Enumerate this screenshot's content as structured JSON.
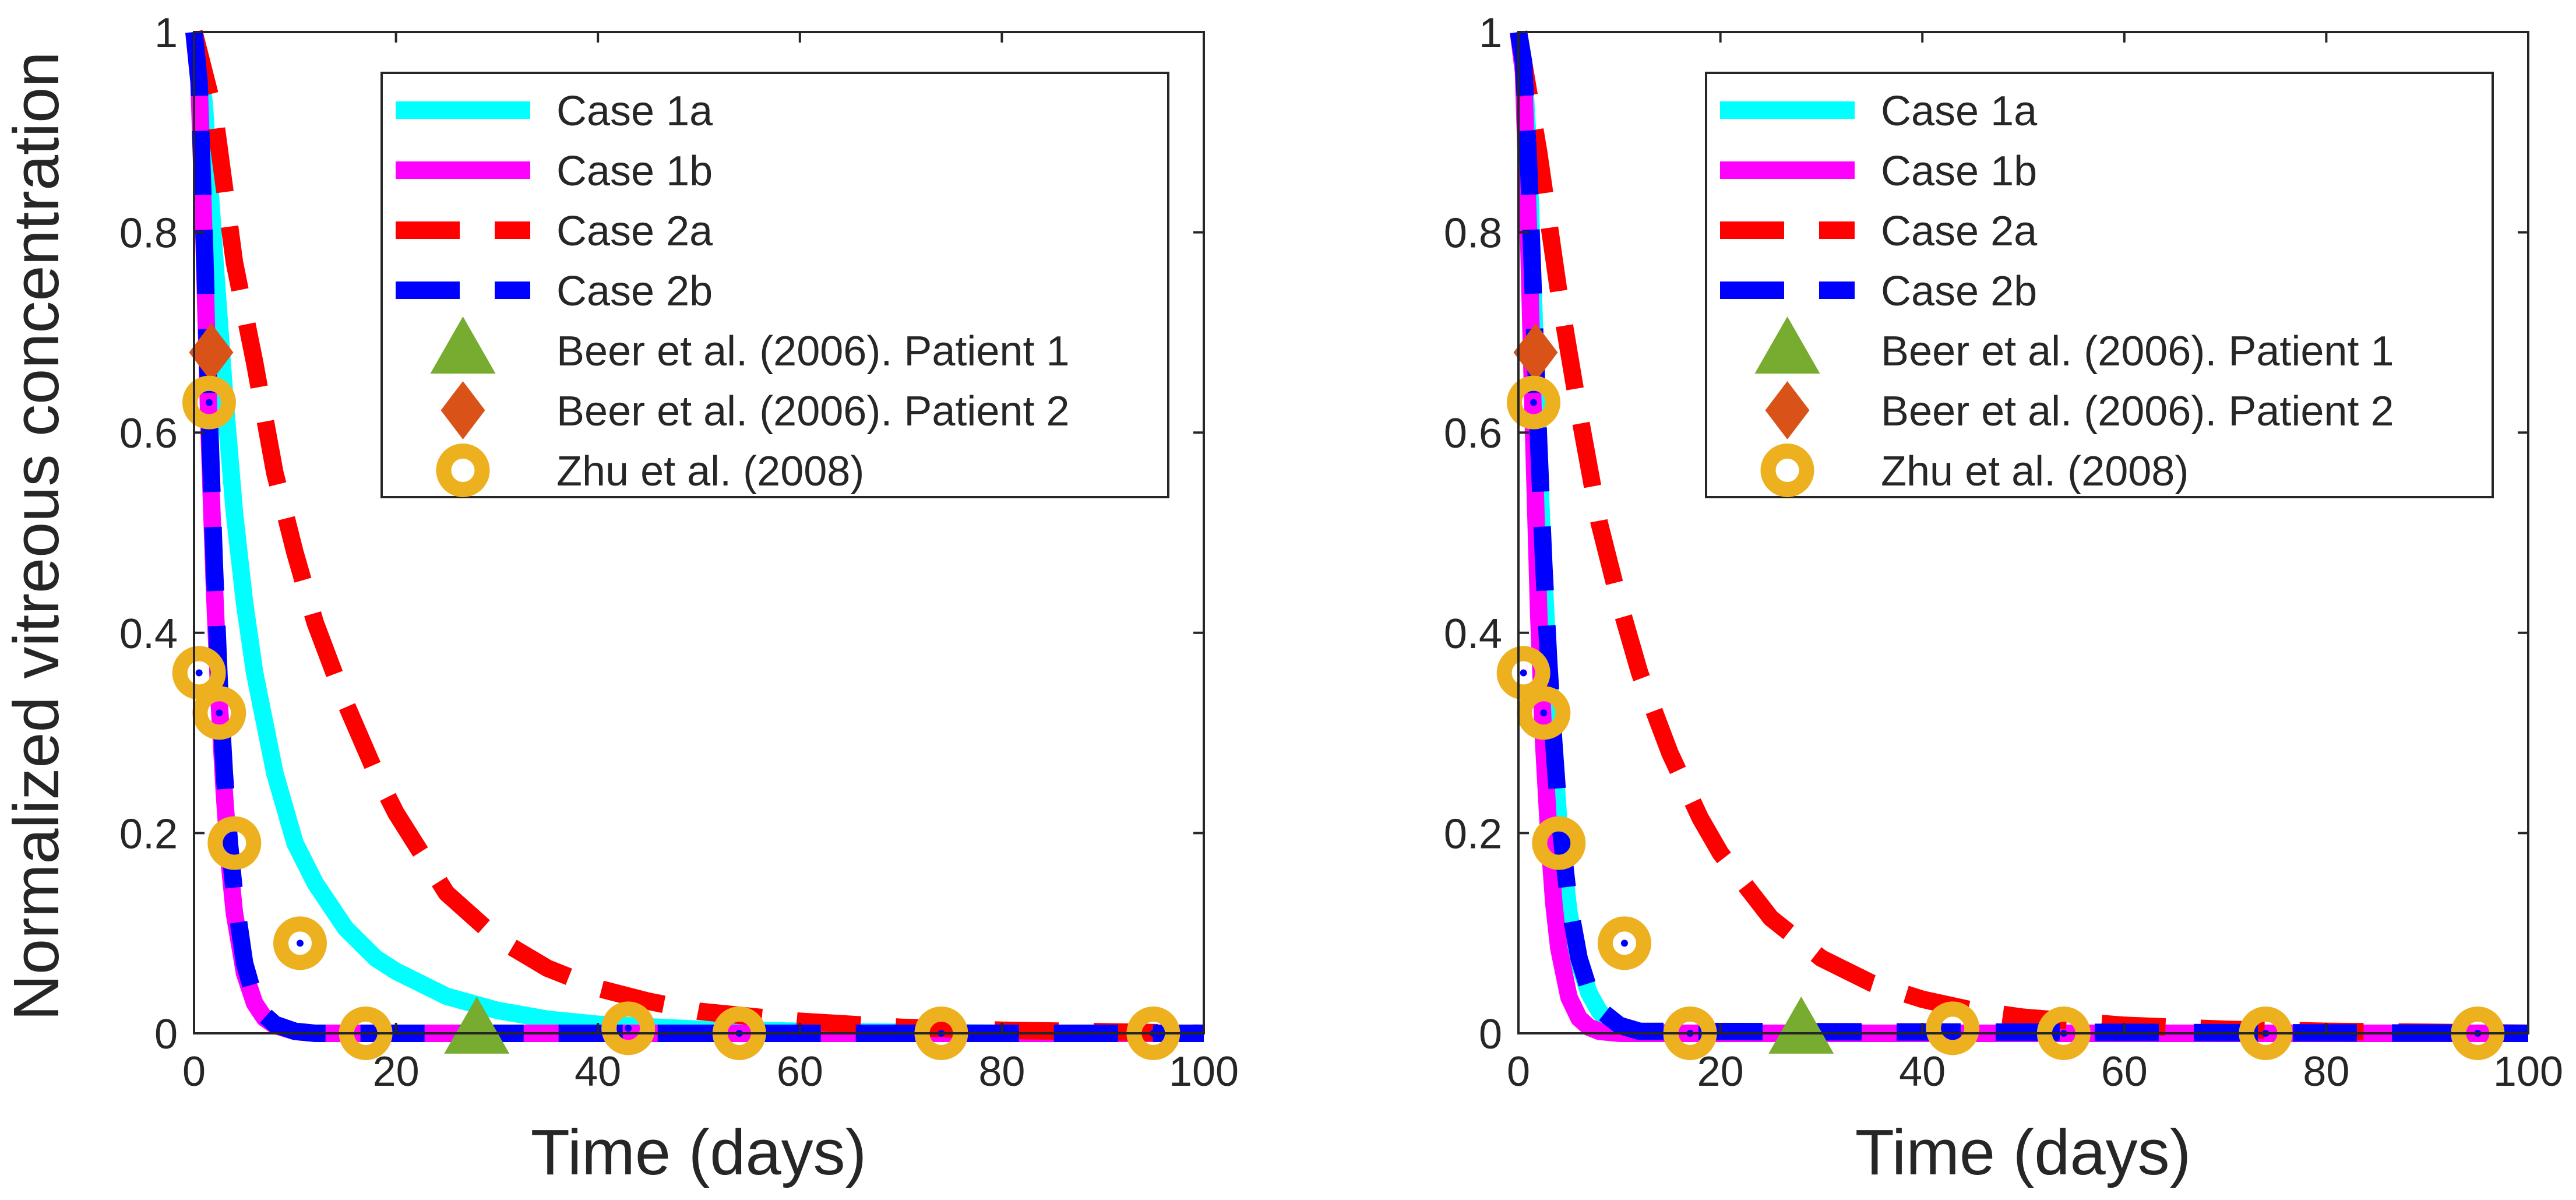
{
  "figure": {
    "ylabel": "Normalized vitreous concentration",
    "xlabel": "Time (days)"
  },
  "colors": {
    "case_1a": "#00ffff",
    "case_1b": "#ff00ff",
    "case_2a": "#ff0000",
    "case_2b": "#0000ff",
    "beer_patient_1": "#77ac30",
    "beer_patient_2": "#d95319",
    "zhu_2008": "#edb120",
    "axes": "#262626"
  },
  "chart_data": [
    {
      "type": "line",
      "xlabel": "Time (days)",
      "ylabel": "Normalized vitreous concentration",
      "xlim": [
        0,
        100
      ],
      "ylim": [
        0,
        1
      ],
      "xticks": [
        "0",
        "20",
        "40",
        "60",
        "80",
        "100"
      ],
      "yticks": [
        "0",
        "0.2",
        "0.4",
        "0.6",
        "0.8",
        "1"
      ],
      "grid": false,
      "legend_position": "top-right",
      "series": [
        {
          "name": "Case 1a",
          "style": "solid",
          "x": [
            0,
            1,
            2,
            3,
            4,
            5,
            6,
            8,
            10,
            12,
            15,
            18,
            20,
            25,
            30,
            35,
            40,
            50,
            60,
            70,
            80,
            90,
            100
          ],
          "y": [
            1.0,
            0.93,
            0.78,
            0.64,
            0.52,
            0.43,
            0.36,
            0.26,
            0.19,
            0.15,
            0.105,
            0.075,
            0.062,
            0.037,
            0.023,
            0.014,
            0.009,
            0.004,
            0.002,
            0.001,
            0.0,
            0.0,
            0.0
          ]
        },
        {
          "name": "Case 1b",
          "style": "solid",
          "x": [
            0,
            0.5,
            1,
            1.5,
            2,
            2.5,
            3,
            3.5,
            4,
            5,
            6,
            7,
            8,
            10,
            12,
            100
          ],
          "y": [
            1.0,
            0.95,
            0.79,
            0.6,
            0.45,
            0.33,
            0.24,
            0.17,
            0.12,
            0.06,
            0.03,
            0.015,
            0.008,
            0.002,
            0.0,
            0.0
          ]
        },
        {
          "name": "Case 2a",
          "style": "dashed",
          "x": [
            0,
            2,
            4,
            6,
            8,
            10,
            12,
            15,
            18,
            20,
            25,
            30,
            35,
            40,
            45,
            50,
            60,
            70,
            80,
            90,
            100
          ],
          "y": [
            1.0,
            0.92,
            0.77,
            0.67,
            0.56,
            0.48,
            0.41,
            0.33,
            0.26,
            0.22,
            0.14,
            0.095,
            0.065,
            0.045,
            0.032,
            0.022,
            0.012,
            0.006,
            0.003,
            0.0015,
            0.0
          ]
        },
        {
          "name": "Case 2b",
          "style": "dashed",
          "x": [
            0,
            0.5,
            1,
            1.5,
            2,
            2.5,
            3,
            3.5,
            4,
            5,
            6,
            7,
            8,
            10,
            12,
            100
          ],
          "y": [
            1.0,
            0.95,
            0.8,
            0.62,
            0.47,
            0.35,
            0.26,
            0.19,
            0.14,
            0.07,
            0.035,
            0.018,
            0.009,
            0.002,
            0.0,
            0.0
          ]
        },
        {
          "name": "Beer et al. (2006). Patient 1",
          "style": "marker-triangle",
          "x": [
            28
          ],
          "y": [
            0.003
          ]
        },
        {
          "name": "Beer et al. (2006). Patient 2",
          "style": "marker-diamond",
          "x": [
            1.7
          ],
          "y": [
            0.68
          ]
        },
        {
          "name": "Zhu et al. (2008)",
          "style": "marker-circle",
          "x": [
            0.5,
            1.5,
            2.5,
            4,
            10.5,
            17,
            43,
            54,
            74,
            95
          ],
          "y": [
            0.36,
            0.63,
            0.32,
            0.19,
            0.09,
            0.0,
            0.005,
            0.0,
            0.0,
            0.0
          ]
        }
      ]
    },
    {
      "type": "line",
      "xlabel": "Time (days)",
      "ylabel": "",
      "xlim": [
        0,
        100
      ],
      "ylim": [
        0,
        1
      ],
      "xticks": [
        "0",
        "20",
        "40",
        "60",
        "80",
        "100"
      ],
      "yticks": [
        "0",
        "0.2",
        "0.4",
        "0.6",
        "0.8",
        "1"
      ],
      "grid": false,
      "legend_position": "top-right",
      "series": [
        {
          "name": "Case 1a",
          "style": "solid",
          "x": [
            0,
            0.5,
            1,
            1.5,
            2,
            2.5,
            3,
            3.5,
            4,
            5,
            6,
            7,
            8,
            9,
            10,
            12,
            15,
            100
          ],
          "y": [
            1.0,
            0.97,
            0.88,
            0.73,
            0.58,
            0.46,
            0.36,
            0.28,
            0.21,
            0.12,
            0.07,
            0.04,
            0.022,
            0.012,
            0.007,
            0.002,
            0.0,
            0.0
          ]
        },
        {
          "name": "Case 1b",
          "style": "solid",
          "x": [
            0,
            0.5,
            1,
            1.5,
            2,
            2.5,
            3,
            3.5,
            4,
            5,
            6,
            7,
            8,
            10,
            100
          ],
          "y": [
            1.0,
            0.96,
            0.8,
            0.6,
            0.42,
            0.29,
            0.2,
            0.13,
            0.085,
            0.036,
            0.015,
            0.006,
            0.002,
            0.0,
            0.0
          ]
        },
        {
          "name": "Case 2a",
          "style": "dashed",
          "x": [
            0,
            2,
            4,
            6,
            8,
            10,
            12,
            15,
            18,
            20,
            25,
            30,
            35,
            40,
            45,
            50,
            60,
            70,
            80,
            90,
            100
          ],
          "y": [
            1.0,
            0.88,
            0.74,
            0.62,
            0.51,
            0.43,
            0.36,
            0.28,
            0.215,
            0.18,
            0.115,
            0.075,
            0.05,
            0.034,
            0.023,
            0.016,
            0.008,
            0.004,
            0.002,
            0.001,
            0.0
          ]
        },
        {
          "name": "Case 2b",
          "style": "dashed",
          "x": [
            0,
            0.5,
            1,
            1.5,
            2,
            2.5,
            3,
            3.5,
            4,
            5,
            6,
            7,
            8,
            10,
            12,
            100
          ],
          "y": [
            1.0,
            0.97,
            0.87,
            0.73,
            0.59,
            0.47,
            0.37,
            0.29,
            0.22,
            0.13,
            0.075,
            0.043,
            0.024,
            0.008,
            0.002,
            0.0
          ]
        },
        {
          "name": "Beer et al. (2006). Patient 1",
          "style": "marker-triangle",
          "x": [
            28
          ],
          "y": [
            0.003
          ]
        },
        {
          "name": "Beer et al. (2006). Patient 2",
          "style": "marker-diamond",
          "x": [
            1.7
          ],
          "y": [
            0.68
          ]
        },
        {
          "name": "Zhu et al. (2008)",
          "style": "marker-circle",
          "x": [
            0.5,
            1.5,
            2.5,
            4,
            10.5,
            17,
            43,
            54,
            74,
            95
          ],
          "y": [
            0.36,
            0.63,
            0.32,
            0.19,
            0.09,
            0.0,
            0.005,
            0.0,
            0.0,
            0.0
          ]
        }
      ]
    }
  ]
}
